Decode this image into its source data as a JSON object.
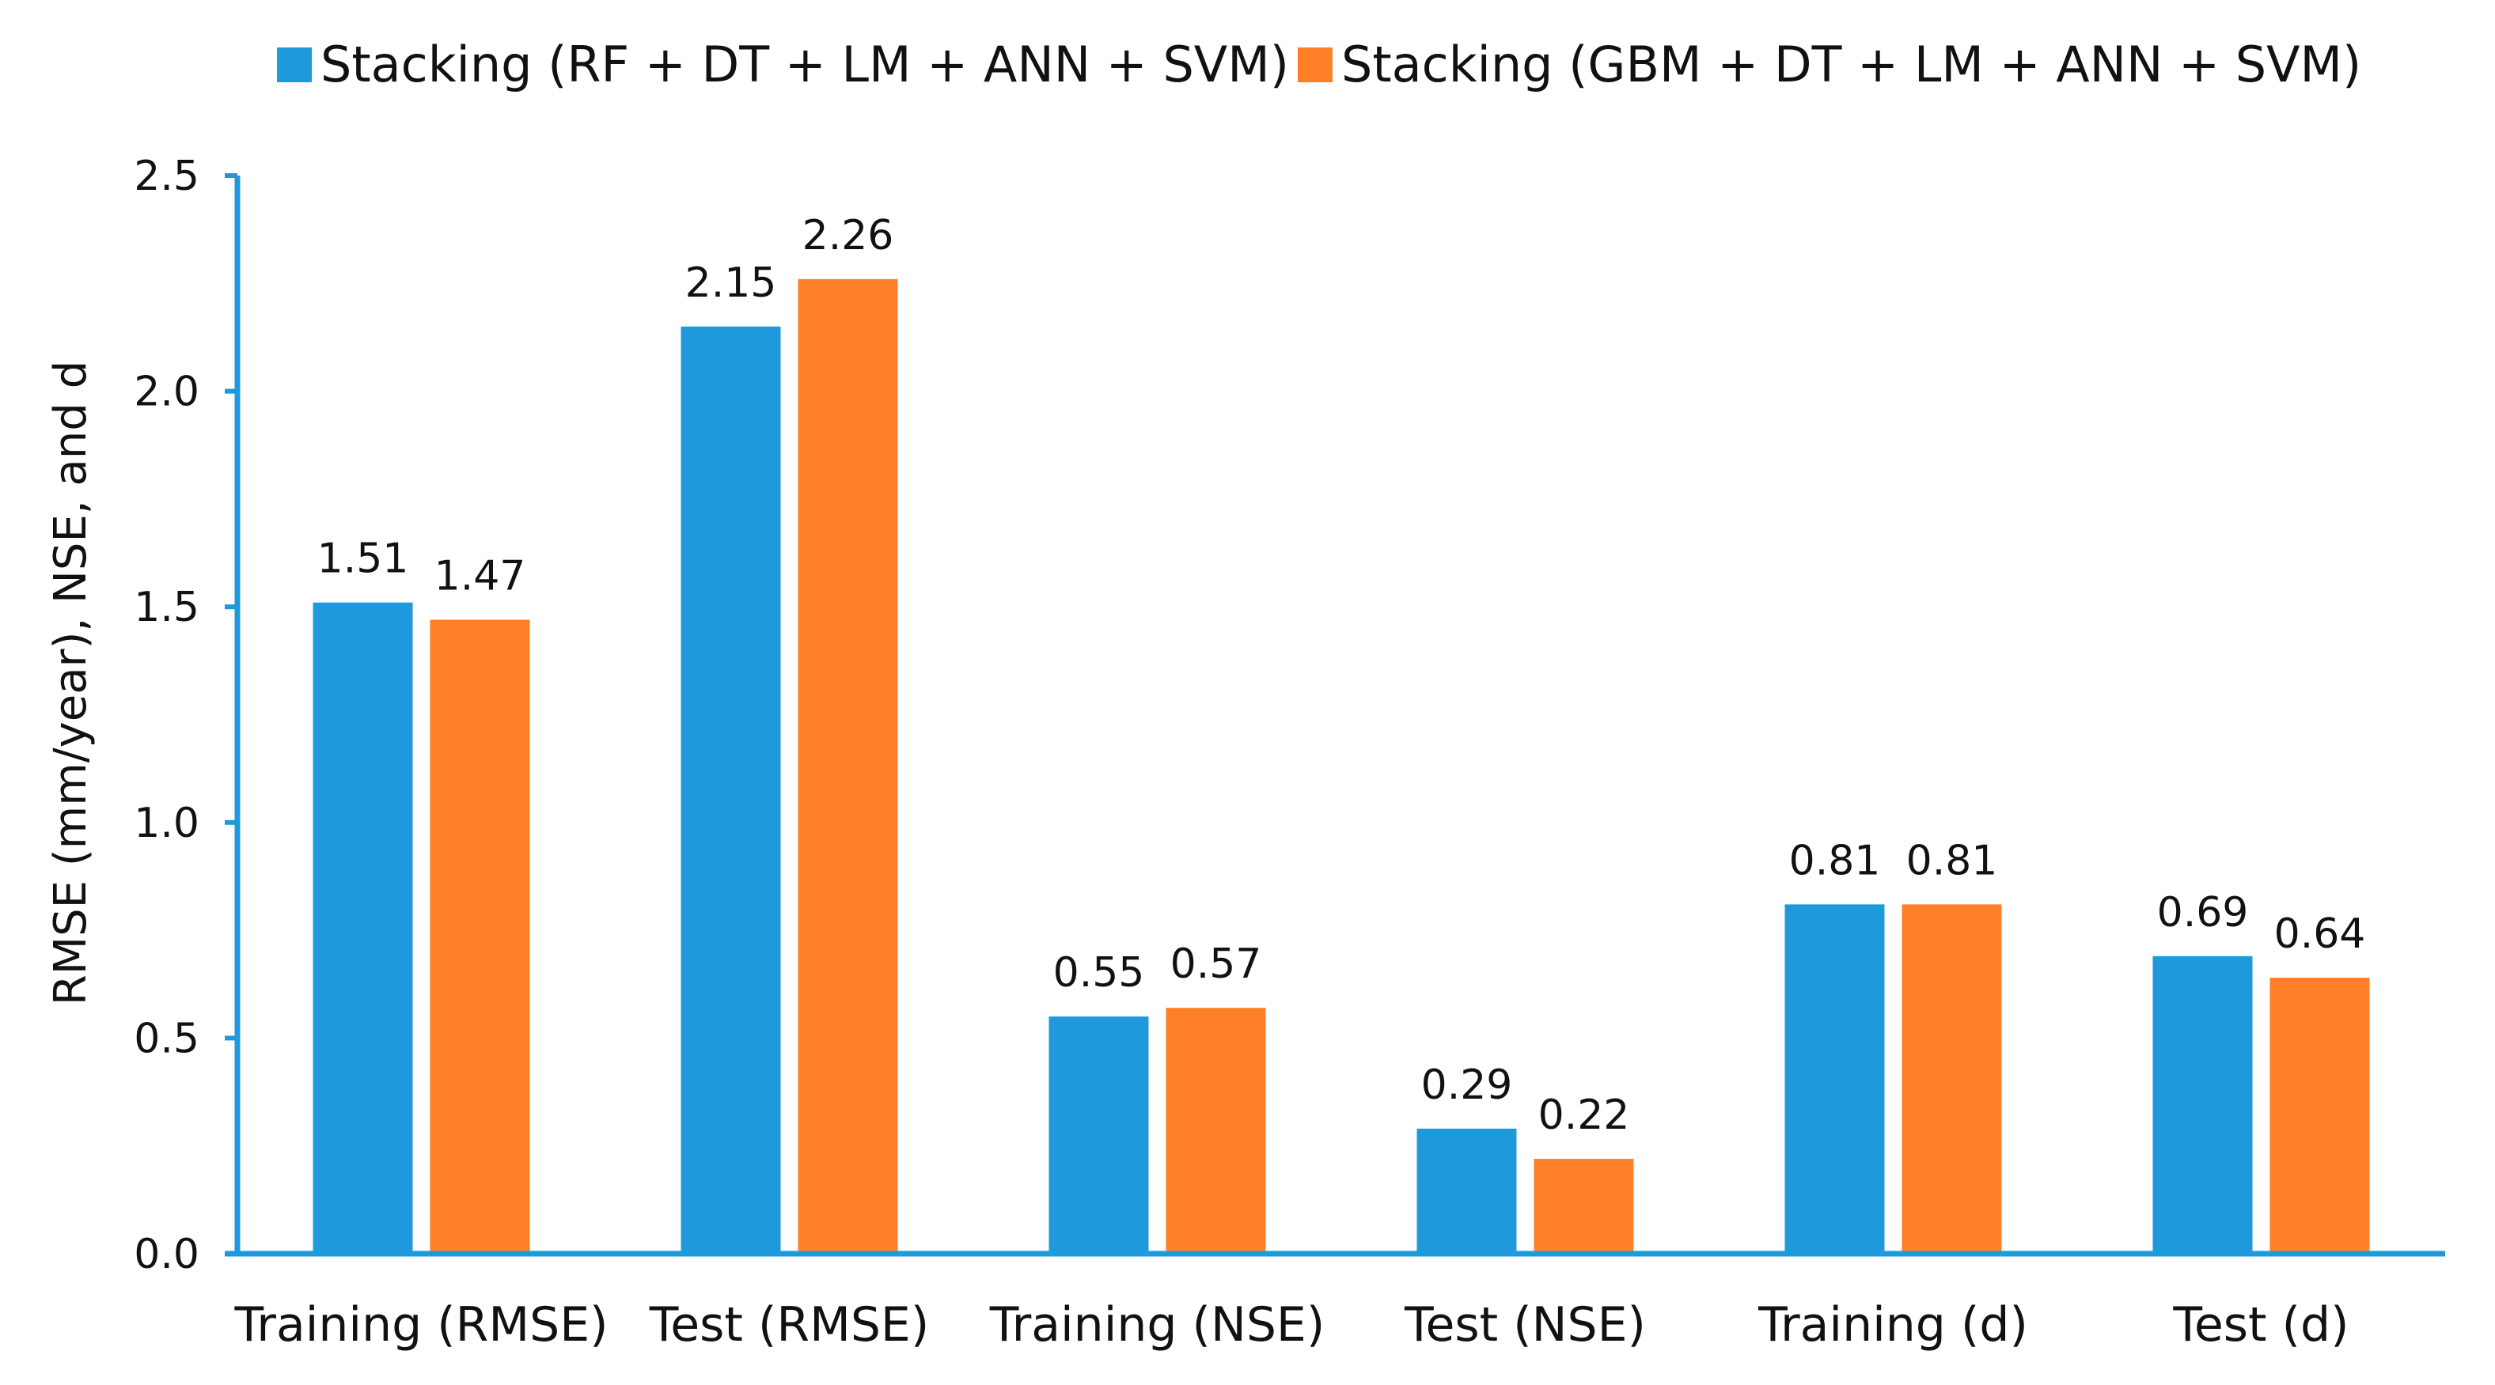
{
  "chart_data": {
    "type": "bar",
    "title": "",
    "xlabel": "",
    "ylabel": "RMSE (mm/year), NSE, and d",
    "ylim": [
      0,
      2.5
    ],
    "yticks": [
      "0.0",
      "0.5",
      "1.0",
      "1.5",
      "2.0",
      "2.5"
    ],
    "categories": [
      "Training (RMSE)",
      "Test (RMSE)",
      "Training (NSE)",
      "Test (NSE)",
      "Training (d)",
      "Test (d)"
    ],
    "series": [
      {
        "name": "Stacking (RF + DT + LM + ANN + SVM)",
        "color": "#1E9ADC",
        "values": [
          1.51,
          2.15,
          0.55,
          0.29,
          0.81,
          0.69
        ],
        "labels": [
          "1.51",
          "2.15",
          "0.55",
          "0.29",
          "0.81",
          "0.69"
        ]
      },
      {
        "name": "Stacking (GBM + DT + LM + ANN + SVM)",
        "color": "#FF7F27",
        "values": [
          1.47,
          2.26,
          0.57,
          0.22,
          0.81,
          0.64
        ],
        "labels": [
          "1.47",
          "2.26",
          "0.57",
          "0.22",
          "0.81",
          "0.64"
        ]
      }
    ],
    "axis_color": "#1E9ADC",
    "legend_position": "top-center"
  }
}
